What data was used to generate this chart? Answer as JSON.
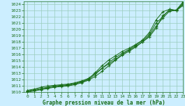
{
  "background_color": "#cceeff",
  "plot_bg_color": "#cceeff",
  "grid_color": "#99ccbb",
  "line_color": "#1a6e1a",
  "xlabel": "Graphe pression niveau de la mer (hPa)",
  "xlim": [
    -0.5,
    23
  ],
  "ylim": [
    1010,
    1024.5
  ],
  "yticks": [
    1010,
    1011,
    1012,
    1013,
    1014,
    1015,
    1016,
    1017,
    1018,
    1019,
    1020,
    1021,
    1022,
    1023,
    1024
  ],
  "xticks": [
    0,
    1,
    2,
    3,
    4,
    5,
    6,
    7,
    8,
    9,
    10,
    11,
    12,
    13,
    14,
    15,
    16,
    17,
    18,
    19,
    20,
    21,
    22,
    23
  ],
  "series": [
    [
      1010.3,
      1010.5,
      1010.8,
      1011.0,
      1011.1,
      1011.2,
      1011.3,
      1011.5,
      1011.8,
      1012.2,
      1013.0,
      1013.8,
      1014.5,
      1015.2,
      1016.0,
      1016.7,
      1017.3,
      1018.0,
      1018.8,
      1020.2,
      1022.2,
      1023.0,
      1023.1,
      1024.4
    ],
    [
      1010.2,
      1010.4,
      1010.6,
      1010.8,
      1011.0,
      1011.1,
      1011.2,
      1011.4,
      1011.7,
      1012.1,
      1013.1,
      1014.2,
      1015.1,
      1015.8,
      1016.5,
      1017.0,
      1017.6,
      1018.3,
      1019.5,
      1021.5,
      1022.8,
      1023.2,
      1023.0,
      1024.2
    ],
    [
      1010.1,
      1010.3,
      1010.5,
      1010.7,
      1010.9,
      1011.0,
      1011.1,
      1011.3,
      1011.6,
      1012.0,
      1012.8,
      1013.8,
      1014.7,
      1015.5,
      1016.2,
      1016.8,
      1017.5,
      1018.2,
      1019.2,
      1021.0,
      1022.0,
      1023.2,
      1023.0,
      1024.0
    ],
    [
      1010.0,
      1010.2,
      1010.4,
      1010.6,
      1010.8,
      1010.9,
      1011.0,
      1011.2,
      1011.5,
      1011.9,
      1012.5,
      1013.3,
      1014.2,
      1015.1,
      1015.9,
      1016.5,
      1017.2,
      1018.0,
      1019.0,
      1020.5,
      1021.8,
      1022.9,
      1023.0,
      1023.8
    ]
  ]
}
